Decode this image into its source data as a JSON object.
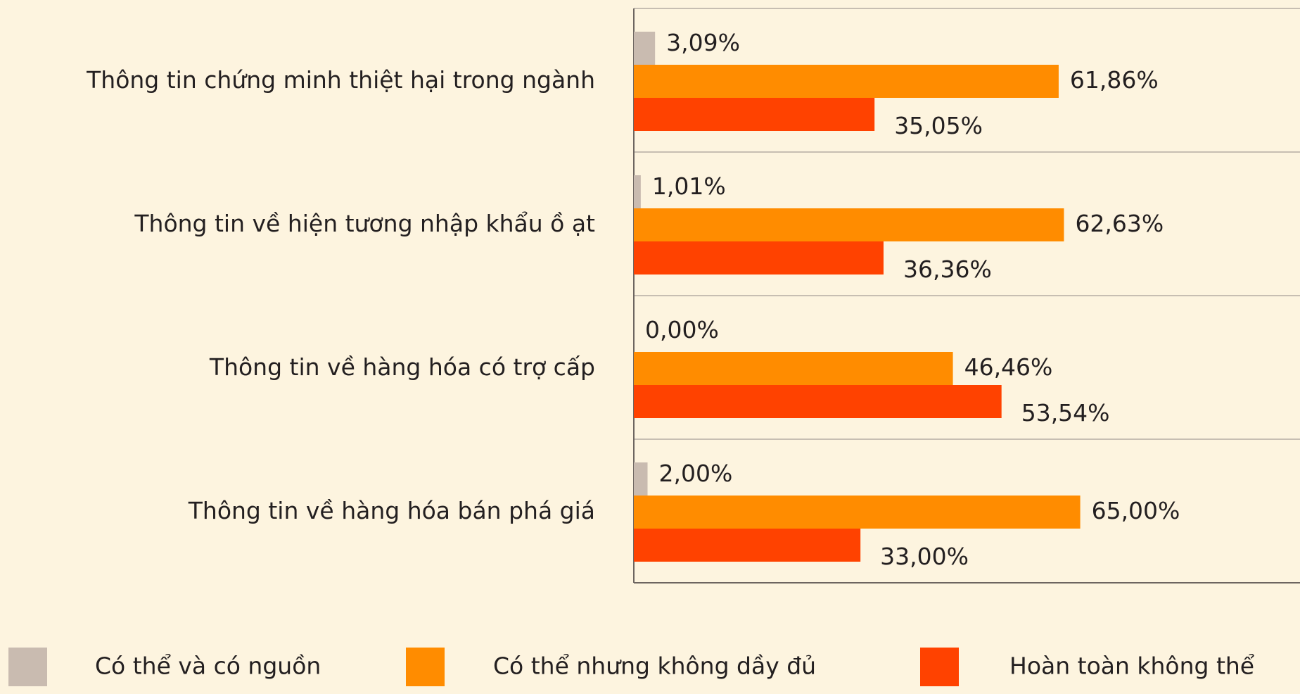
{
  "chart_data": {
    "type": "bar",
    "orientation": "horizontal",
    "categories": [
      "Thông tin chứng minh thiệt hại trong ngành",
      "Thông tin về hiện tương nhập khẩu ồ ạt",
      "Thông tin về hàng hóa có trợ cấp",
      "Thông tin về hàng hóa bán phá giá"
    ],
    "series": [
      {
        "name": "Có thể và có nguồn",
        "color": "#c9bbb0",
        "values": [
          3.09,
          1.01,
          0,
          2
        ],
        "value_labels": [
          "3,09%",
          "1,01%",
          "0,00%",
          "2,00%"
        ]
      },
      {
        "name": "Có thể nhưng không dầy đủ",
        "color": "#ff8c00",
        "values": [
          61.86,
          62.63,
          46.46,
          65
        ],
        "value_labels": [
          "61,86%",
          "62,63%",
          "46,46%",
          "65,00%"
        ]
      },
      {
        "name": "Hoàn toàn không thể",
        "color": "#ff4200",
        "values": [
          35.05,
          36.36,
          53.54,
          33
        ],
        "value_labels": [
          "35,05%",
          "36,36%",
          "53,54%",
          "33,00%"
        ]
      }
    ],
    "xlim": [
      0,
      97
    ],
    "legend": "bottom"
  }
}
